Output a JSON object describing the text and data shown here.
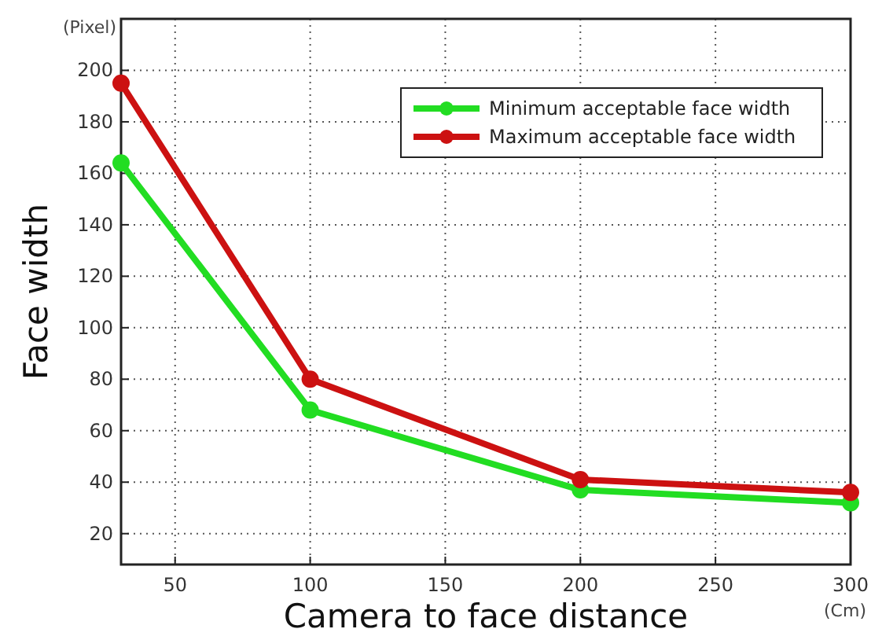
{
  "chart_data": {
    "type": "line",
    "xlabel": "Camera to face distance",
    "ylabel": "Face width",
    "annotations": [
      "(Pixel)",
      "(Cm)"
    ],
    "x": [
      30,
      100,
      200,
      300
    ],
    "series": [
      {
        "name": "Minimum acceptable face width",
        "color": "#22dd22",
        "values": [
          164,
          68,
          37,
          32
        ]
      },
      {
        "name": "Maximum acceptable face width",
        "color": "#cc1111",
        "values": [
          195,
          80,
          41,
          36
        ]
      }
    ],
    "xlim": [
      30,
      300
    ],
    "xticks": [
      50,
      100,
      150,
      200,
      250,
      300
    ],
    "ylim": [
      8,
      220
    ],
    "yticks": [
      20,
      40,
      60,
      80,
      100,
      120,
      140,
      160,
      180,
      200
    ],
    "grid": true,
    "legend": "top right",
    "marker": "circle",
    "line_style": "solid"
  }
}
